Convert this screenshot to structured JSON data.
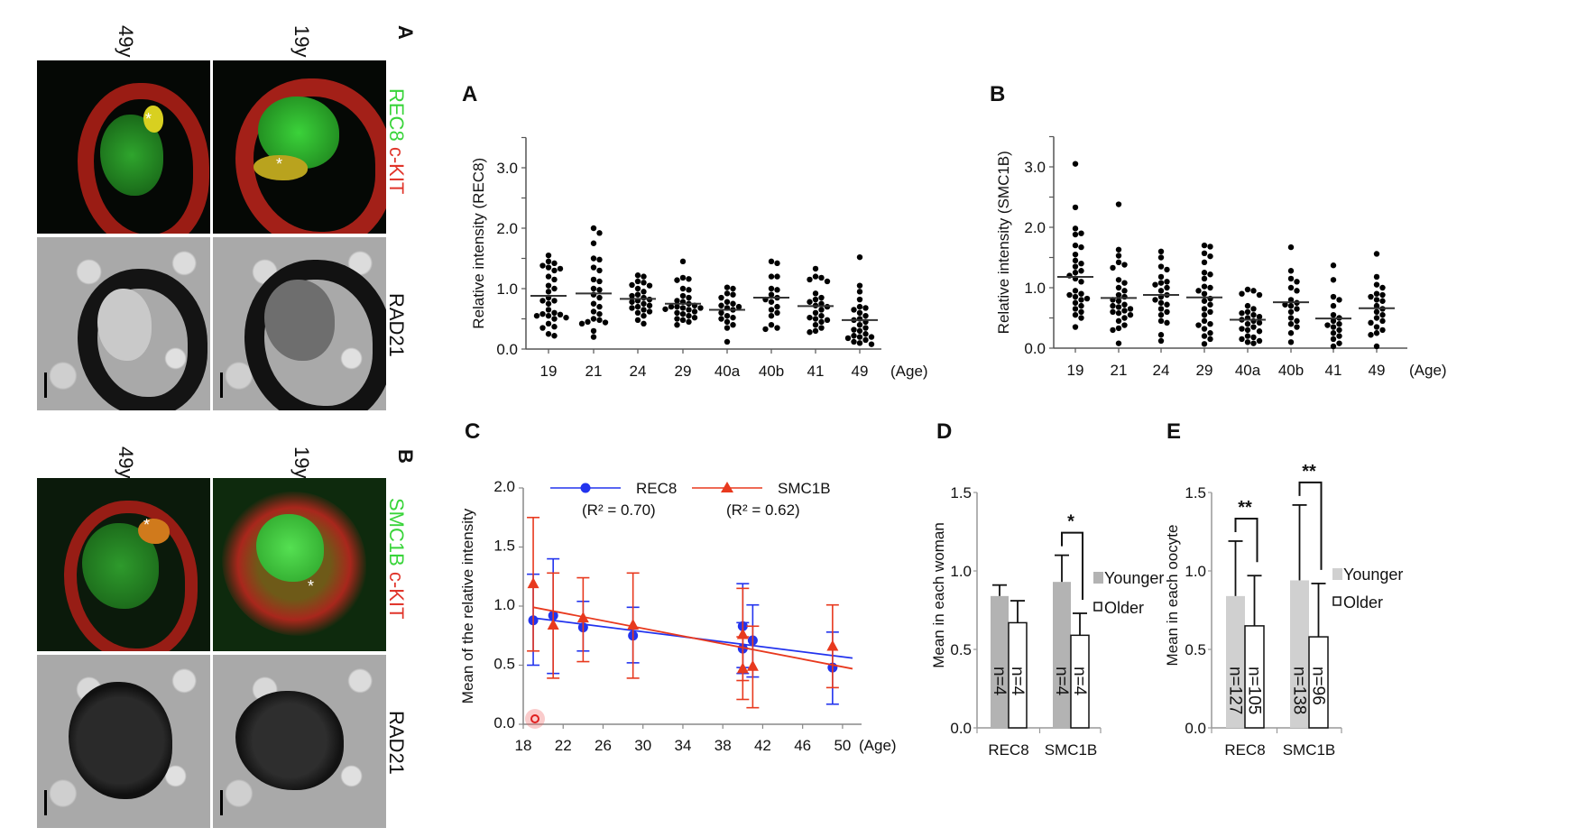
{
  "micrographs": {
    "panel_a": {
      "label": "A",
      "ages": [
        "49y",
        "19y"
      ],
      "stain_green": "REC8",
      "stain_red": "c-KIT",
      "stain_gray": "RAD21",
      "asterisk": "*"
    },
    "panel_b": {
      "label": "B",
      "ages": [
        "49y",
        "19y"
      ],
      "stain_green": "SMC1B",
      "stain_red": "c-KIT",
      "stain_gray": "RAD21",
      "asterisk": "*"
    }
  },
  "colors": {
    "rec8": "#2233ee",
    "smc1b": "#e8391e",
    "younger_d": "#b3b3b3",
    "younger_e": "#d0d0d0",
    "older": "#ffffff",
    "green_stain": "#39d43a",
    "red_stain": "#e0342a"
  },
  "chart_data": [
    {
      "panel": "A",
      "type": "scatter",
      "ylabel": "Relative intensity (REC8)",
      "xlabel": "(Age)",
      "categories": [
        "19",
        "21",
        "24",
        "29",
        "40a",
        "40b",
        "41",
        "49"
      ],
      "ylim": [
        0,
        3.5
      ],
      "yticks": [
        "0.0",
        "1.0",
        "2.0",
        "3.0"
      ],
      "means": [
        0.88,
        0.92,
        0.83,
        0.75,
        0.65,
        0.85,
        0.71,
        0.48
      ],
      "points": [
        [
          1.55,
          1.45,
          1.42,
          1.38,
          1.35,
          1.33,
          1.3,
          1.2,
          1.15,
          1.05,
          1.0,
          0.95,
          0.85,
          0.8,
          0.8,
          0.75,
          0.65,
          0.6,
          0.58,
          0.57,
          0.55,
          0.55,
          0.52,
          0.5,
          0.42,
          0.37,
          0.35,
          0.25,
          0.22
        ],
        [
          2.0,
          1.92,
          1.75,
          1.5,
          1.48,
          1.35,
          1.3,
          1.15,
          1.12,
          1.0,
          0.98,
          0.9,
          0.85,
          0.75,
          0.7,
          0.62,
          0.58,
          0.5,
          0.48,
          0.45,
          0.44,
          0.42,
          0.3,
          0.2
        ],
        [
          1.22,
          1.2,
          1.12,
          1.1,
          1.06,
          1.05,
          1.0,
          0.95,
          0.9,
          0.88,
          0.85,
          0.82,
          0.8,
          0.78,
          0.75,
          0.72,
          0.7,
          0.68,
          0.65,
          0.62,
          0.6,
          0.55,
          0.48,
          0.42
        ],
        [
          1.45,
          1.18,
          1.16,
          1.14,
          1.0,
          0.98,
          0.88,
          0.85,
          0.8,
          0.78,
          0.75,
          0.72,
          0.7,
          0.7,
          0.68,
          0.68,
          0.66,
          0.65,
          0.62,
          0.6,
          0.58,
          0.55,
          0.52,
          0.5,
          0.48,
          0.45,
          0.4
        ],
        [
          1.02,
          1.0,
          0.92,
          0.9,
          0.85,
          0.78,
          0.75,
          0.72,
          0.7,
          0.68,
          0.65,
          0.6,
          0.55,
          0.52,
          0.5,
          0.45,
          0.4,
          0.35,
          0.12
        ],
        [
          1.45,
          1.42,
          1.2,
          1.2,
          1.0,
          0.98,
          0.9,
          0.85,
          0.82,
          0.78,
          0.7,
          0.65,
          0.6,
          0.55,
          0.4,
          0.35,
          0.33
        ],
        [
          1.33,
          1.2,
          1.18,
          1.15,
          1.12,
          0.92,
          0.85,
          0.82,
          0.78,
          0.75,
          0.72,
          0.7,
          0.65,
          0.6,
          0.55,
          0.52,
          0.5,
          0.48,
          0.45,
          0.4,
          0.35,
          0.3,
          0.28
        ],
        [
          1.52,
          1.05,
          0.95,
          0.82,
          0.7,
          0.68,
          0.65,
          0.6,
          0.55,
          0.5,
          0.48,
          0.45,
          0.4,
          0.35,
          0.32,
          0.3,
          0.25,
          0.22,
          0.2,
          0.2,
          0.18,
          0.15,
          0.12,
          0.1,
          0.08
        ]
      ]
    },
    {
      "panel": "B",
      "type": "scatter",
      "ylabel": "Relative intensity (SMC1B)",
      "xlabel": "(Age)",
      "categories": [
        "19",
        "21",
        "24",
        "29",
        "40a",
        "40b",
        "41",
        "49"
      ],
      "ylim": [
        0,
        3.5
      ],
      "yticks": [
        "0.0",
        "1.0",
        "2.0",
        "3.0"
      ],
      "means": [
        1.18,
        0.83,
        0.88,
        0.84,
        0.47,
        0.76,
        0.49,
        0.66
      ],
      "points": [
        [
          3.05,
          2.33,
          1.98,
          1.9,
          1.88,
          1.7,
          1.67,
          1.55,
          1.45,
          1.4,
          1.35,
          1.28,
          1.25,
          1.2,
          1.15,
          1.1,
          0.95,
          0.9,
          0.88,
          0.85,
          0.82,
          0.8,
          0.75,
          0.7,
          0.65,
          0.6,
          0.55,
          0.5,
          0.35
        ],
        [
          2.38,
          1.63,
          1.53,
          1.42,
          1.38,
          1.33,
          1.13,
          1.08,
          1.0,
          0.95,
          0.88,
          0.85,
          0.8,
          0.78,
          0.72,
          0.7,
          0.68,
          0.65,
          0.62,
          0.6,
          0.58,
          0.55,
          0.5,
          0.45,
          0.38,
          0.33,
          0.3,
          0.08
        ],
        [
          1.6,
          1.5,
          1.35,
          1.3,
          1.18,
          1.1,
          1.08,
          1.05,
          1.0,
          0.95,
          0.88,
          0.85,
          0.8,
          0.75,
          0.72,
          0.65,
          0.6,
          0.55,
          0.45,
          0.42,
          0.22,
          0.12
        ],
        [
          1.7,
          1.68,
          1.57,
          1.52,
          1.42,
          1.25,
          1.22,
          1.15,
          1.02,
          1.0,
          0.95,
          0.9,
          0.82,
          0.78,
          0.72,
          0.65,
          0.6,
          0.55,
          0.45,
          0.4,
          0.38,
          0.32,
          0.25,
          0.2,
          0.15,
          0.07
        ],
        [
          0.97,
          0.95,
          0.9,
          0.88,
          0.7,
          0.65,
          0.6,
          0.58,
          0.55,
          0.52,
          0.5,
          0.47,
          0.45,
          0.42,
          0.4,
          0.35,
          0.32,
          0.3,
          0.28,
          0.2,
          0.18,
          0.15,
          0.12,
          0.1,
          0.08
        ],
        [
          1.67,
          1.28,
          1.15,
          1.1,
          1.0,
          0.95,
          0.8,
          0.75,
          0.72,
          0.7,
          0.65,
          0.6,
          0.5,
          0.45,
          0.4,
          0.35,
          0.25,
          0.1
        ],
        [
          1.37,
          1.13,
          0.85,
          0.8,
          0.7,
          0.55,
          0.5,
          0.45,
          0.4,
          0.38,
          0.35,
          0.3,
          0.25,
          0.2,
          0.15,
          0.08,
          0.03
        ],
        [
          1.56,
          1.18,
          1.05,
          1.0,
          0.9,
          0.88,
          0.85,
          0.8,
          0.78,
          0.7,
          0.65,
          0.6,
          0.55,
          0.5,
          0.45,
          0.42,
          0.35,
          0.3,
          0.25,
          0.22,
          0.03
        ]
      ]
    },
    {
      "panel": "C",
      "type": "line",
      "ylabel": "Mean of the relative intensity",
      "xlabel": "(Age)",
      "xlim": [
        18,
        51
      ],
      "ylim": [
        0,
        2.0
      ],
      "xticks": [
        "18",
        "22",
        "26",
        "30",
        "34",
        "38",
        "42",
        "46",
        "50"
      ],
      "yticks": [
        "0.0",
        "0.5",
        "1.0",
        "1.5",
        "2.0"
      ],
      "legend": "top",
      "series": [
        {
          "name": "REC8",
          "r2": "(R² = 0.70)",
          "marker": "circle",
          "x": [
            19,
            21,
            24,
            29,
            40,
            40,
            41,
            49
          ],
          "y": [
            0.88,
            0.92,
            0.82,
            0.75,
            0.64,
            0.83,
            0.71,
            0.48
          ],
          "err_low": [
            0.5,
            0.43,
            0.62,
            0.52,
            0.43,
            0.48,
            0.4,
            0.17
          ],
          "err_high": [
            1.27,
            1.4,
            1.04,
            0.99,
            0.86,
            1.19,
            1.01,
            0.78
          ],
          "fit": [
            [
              19,
              0.9
            ],
            [
              51,
              0.56
            ]
          ]
        },
        {
          "name": "SMC1B",
          "r2": "(R² = 0.62)",
          "marker": "triangle",
          "x": [
            19,
            21,
            24,
            29,
            40,
            40,
            41,
            49
          ],
          "y": [
            1.19,
            0.84,
            0.9,
            0.84,
            0.47,
            0.76,
            0.49,
            0.66
          ],
          "err_low": [
            0.62,
            0.39,
            0.53,
            0.39,
            0.21,
            0.37,
            0.14,
            0.31
          ],
          "err_high": [
            1.75,
            1.28,
            1.24,
            1.28,
            0.74,
            1.15,
            0.83,
            1.01
          ],
          "fit": [
            [
              19,
              0.99
            ],
            [
              51,
              0.47
            ]
          ]
        }
      ]
    },
    {
      "panel": "D",
      "type": "bar",
      "ylabel": "Mean in each woman",
      "categories": [
        "REC8",
        "SMC1B"
      ],
      "ylim": [
        0,
        1.5
      ],
      "yticks": [
        "0.0",
        "0.5",
        "1.0",
        "1.5"
      ],
      "legend": "right",
      "series": [
        {
          "name": "Younger",
          "values": [
            0.84,
            0.93
          ],
          "err_upper": [
            0.91,
            1.1
          ],
          "n": [
            "n=4",
            "n=4"
          ]
        },
        {
          "name": "Older",
          "values": [
            0.67,
            0.59
          ],
          "err_upper": [
            0.81,
            0.73
          ],
          "n": [
            "n=4",
            "n=4"
          ]
        }
      ],
      "significance": [
        {
          "category": 1,
          "label": "*"
        }
      ]
    },
    {
      "panel": "E",
      "type": "bar",
      "ylabel": "Mean in each oocyte",
      "categories": [
        "REC8",
        "SMC1B"
      ],
      "ylim": [
        0,
        1.5
      ],
      "yticks": [
        "0.0",
        "0.5",
        "1.0",
        "1.5"
      ],
      "legend": "right",
      "series": [
        {
          "name": "Younger",
          "values": [
            0.84,
            0.94
          ],
          "err_upper": [
            1.19,
            1.42
          ],
          "n": [
            "n=127",
            "n=138"
          ]
        },
        {
          "name": "Older",
          "values": [
            0.65,
            0.58
          ],
          "err_upper": [
            0.97,
            0.92
          ],
          "n": [
            "n=105",
            "n=96"
          ]
        }
      ],
      "significance": [
        {
          "category": 0,
          "label": "**"
        },
        {
          "category": 1,
          "label": "**"
        }
      ]
    }
  ]
}
